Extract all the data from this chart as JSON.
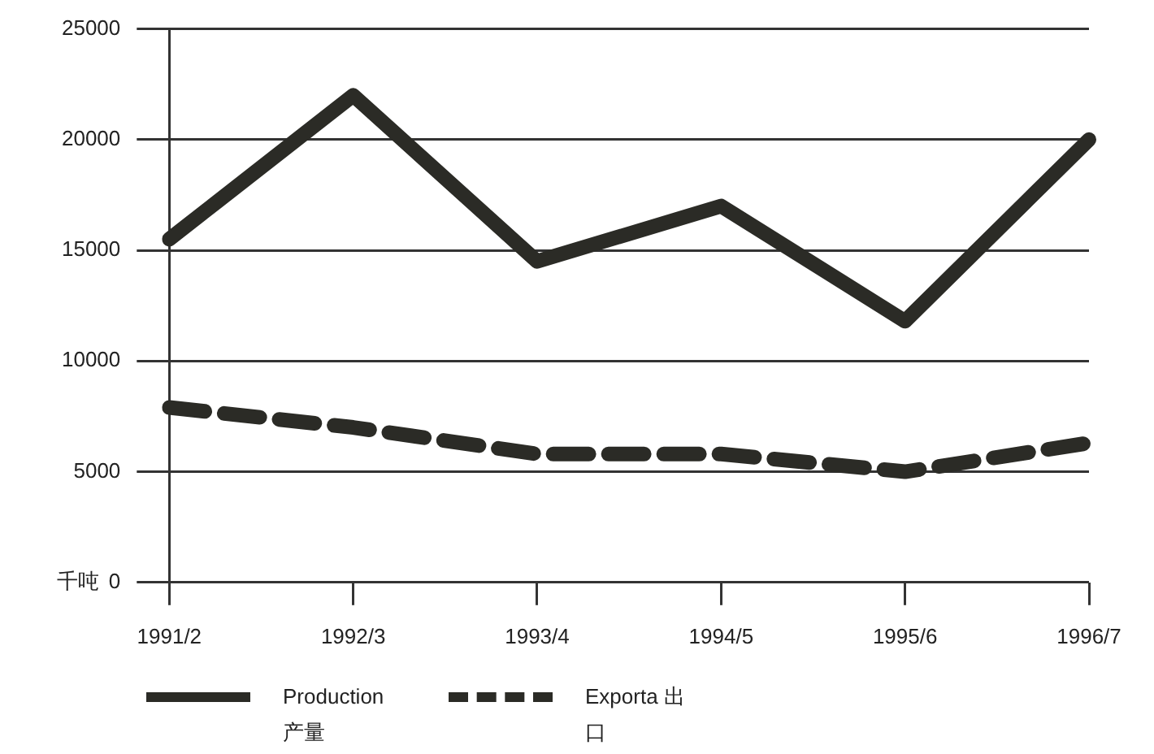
{
  "chart_data": {
    "type": "line",
    "ylabel": "千吨",
    "categories": [
      "1991/2",
      "1992/3",
      "1993/4",
      "1994/5",
      "1995/6",
      "1996/7"
    ],
    "series": [
      {
        "name": "Production 产量",
        "color": "#2b2b26",
        "values": [
          15500,
          22000,
          14500,
          17000,
          11800,
          20000
        ],
        "line_style": "solid"
      },
      {
        "name": "Exporta 出口",
        "color": "#2b2b26",
        "values": [
          7900,
          7000,
          5800,
          5800,
          5000,
          6300
        ],
        "line_style": "dashed"
      }
    ],
    "ylim": [
      0,
      25000
    ],
    "yticks": [
      0,
      5000,
      10000,
      15000,
      20000,
      25000
    ],
    "grid": "y",
    "legend": "bottom",
    "marker": "none"
  }
}
